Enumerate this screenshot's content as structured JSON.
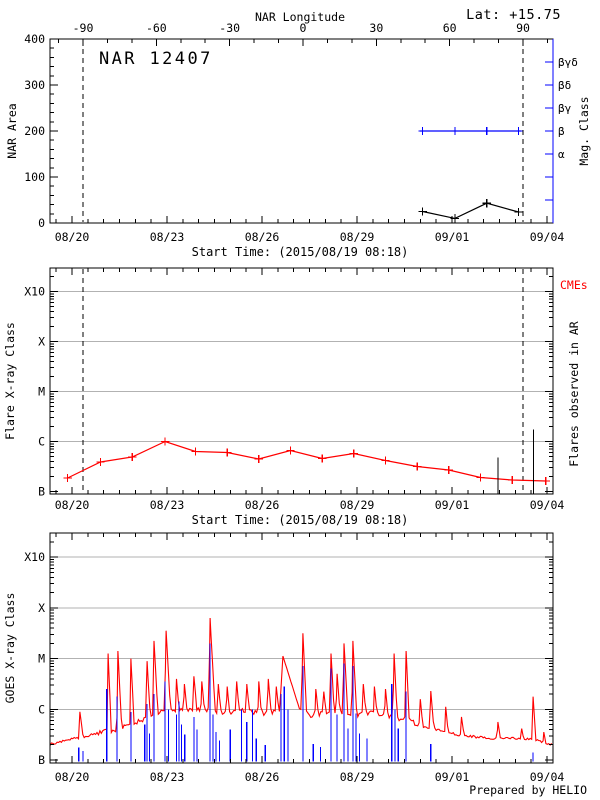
{
  "header": {
    "lat": "Lat: +15.75",
    "title": "NAR 12407",
    "prepared_by": "Prepared by HELIO"
  },
  "colors": {
    "red": "#ff0000",
    "blue": "#0000ff",
    "grid": "#b2b2b2",
    "black": "#000000"
  },
  "time_axis": {
    "tick_labels": [
      "08/20",
      "08/23",
      "08/26",
      "08/29",
      "09/01",
      "09/04"
    ],
    "tick_days": [
      0,
      3,
      6,
      9,
      12,
      15
    ],
    "minor_step_days": 0.5,
    "start_time_label": "Start Time: (2015/08/19 08:18)"
  },
  "longitude_axis": {
    "title": "NAR Longitude",
    "tick_values": [
      -90,
      -60,
      -30,
      0,
      30,
      60,
      90
    ],
    "minor_step_deg": 10,
    "limb_lines_deg": [
      -90,
      90
    ]
  },
  "level_encoding": "y levels for X-ray panels given in decades above B: 0=B, 1=C, 2=M, 3=X, 4=X10",
  "chart_data": [
    {
      "type": "line",
      "title": "NAR 12407 area and magnetic class",
      "ylabel": "NAR Area",
      "ylim": [
        0,
        400
      ],
      "yticks": [
        0,
        100,
        200,
        300,
        400
      ],
      "right_axis": {
        "label": "Mag. Class",
        "tick_labels": [
          "βγδ",
          "βδ",
          "βγ",
          "β",
          "α"
        ],
        "color": "#0000ff"
      },
      "series": [
        {
          "name": "nar-area",
          "color": "#000000",
          "marker": "plus",
          "x_days": [
            11.07,
            12.09,
            13.1,
            14.1
          ],
          "values": [
            25,
            10,
            43,
            24
          ]
        },
        {
          "name": "mag-class",
          "color": "#0000ff",
          "marker": "plus",
          "x_days": [
            11.07,
            12.09,
            13.1,
            14.1
          ],
          "class_values": [
            "β",
            "β",
            "β",
            "β"
          ]
        }
      ]
    },
    {
      "type": "line",
      "ylabel": "Flare X-ray Class",
      "yticks": [
        "B",
        "C",
        "M",
        "X",
        "X10"
      ],
      "right_label": "Flares observed in AR",
      "cmes_label": "CMEs",
      "series": [
        {
          "name": "flare-xray-class",
          "color": "#ff0000",
          "marker": "plus",
          "points": [
            [
              -0.14,
              0.27
            ],
            [
              0.9,
              0.59
            ],
            [
              1.9,
              0.69
            ],
            [
              2.94,
              1.0
            ],
            [
              3.9,
              0.8
            ],
            [
              4.9,
              0.78
            ],
            [
              5.9,
              0.65
            ],
            [
              6.9,
              0.82
            ],
            [
              7.9,
              0.66
            ],
            [
              8.9,
              0.76
            ],
            [
              9.9,
              0.62
            ],
            [
              10.9,
              0.5
            ],
            [
              11.9,
              0.43
            ],
            [
              12.9,
              0.28
            ],
            [
              13.9,
              0.23
            ],
            [
              14.96,
              0.21
            ]
          ]
        }
      ],
      "flare_event_lines": [
        [
          13.45,
          0.68
        ],
        [
          14.57,
          1.24
        ]
      ]
    },
    {
      "type": "line",
      "ylabel": "GOES X-ray Class",
      "yticks": [
        "B",
        "C",
        "M",
        "X",
        "X10"
      ],
      "goes_baseline": [
        [
          -0.7,
          0.3
        ],
        [
          -0.4,
          0.36
        ],
        [
          0,
          0.42
        ],
        [
          0.5,
          0.47
        ],
        [
          1,
          0.58
        ],
        [
          1.5,
          0.6
        ],
        [
          2,
          0.75
        ],
        [
          2.5,
          0.88
        ],
        [
          3,
          1.0
        ],
        [
          3.5,
          0.98
        ],
        [
          4,
          1.02
        ],
        [
          4.5,
          0.96
        ],
        [
          5,
          0.92
        ],
        [
          5.5,
          0.98
        ],
        [
          6,
          0.92
        ],
        [
          6.5,
          0.98
        ],
        [
          6.9,
          1.15
        ],
        [
          7.1,
          0.98
        ],
        [
          7.5,
          0.88
        ],
        [
          8,
          0.92
        ],
        [
          8.5,
          0.95
        ],
        [
          9,
          0.9
        ],
        [
          9.5,
          0.95
        ],
        [
          10,
          0.88
        ],
        [
          10.5,
          0.8
        ],
        [
          11,
          0.68
        ],
        [
          11.5,
          0.6
        ],
        [
          12,
          0.52
        ],
        [
          12.5,
          0.47
        ],
        [
          13,
          0.44
        ],
        [
          13.5,
          0.42
        ],
        [
          14,
          0.43
        ],
        [
          14.5,
          0.42
        ],
        [
          15,
          0.33
        ],
        [
          15.2,
          0.3
        ]
      ],
      "goes_spikes": [
        [
          0.25,
          0.95,
          0.03,
          0.1
        ],
        [
          1.14,
          2.1,
          0.035,
          0.1
        ],
        [
          1.45,
          2.15,
          0.035,
          0.12
        ],
        [
          1.86,
          2.0,
          0.035,
          0.1
        ],
        [
          2.37,
          1.95,
          0.035,
          0.1
        ],
        [
          2.59,
          2.35,
          0.035,
          0.12
        ],
        [
          2.97,
          2.55,
          0.04,
          0.14
        ],
        [
          3.3,
          1.6,
          0.03,
          0.08
        ],
        [
          3.55,
          1.5,
          0.03,
          0.08
        ],
        [
          3.85,
          1.65,
          0.03,
          0.09
        ],
        [
          4.1,
          1.55,
          0.03,
          0.08
        ],
        [
          4.36,
          2.8,
          0.04,
          0.16
        ],
        [
          4.62,
          1.5,
          0.03,
          0.08
        ],
        [
          4.9,
          1.45,
          0.03,
          0.08
        ],
        [
          5.2,
          1.55,
          0.03,
          0.08
        ],
        [
          5.52,
          1.5,
          0.03,
          0.08
        ],
        [
          5.9,
          1.55,
          0.03,
          0.08
        ],
        [
          6.2,
          1.6,
          0.03,
          0.08
        ],
        [
          6.45,
          1.45,
          0.03,
          0.08
        ],
        [
          6.66,
          2.05,
          0.1,
          0.55
        ],
        [
          7.29,
          2.5,
          0.04,
          0.12
        ],
        [
          7.7,
          1.4,
          0.03,
          0.08
        ],
        [
          7.95,
          1.35,
          0.03,
          0.08
        ],
        [
          8.18,
          2.1,
          0.035,
          0.1
        ],
        [
          8.37,
          1.7,
          0.03,
          0.09
        ],
        [
          8.59,
          2.3,
          0.035,
          0.12
        ],
        [
          8.87,
          2.35,
          0.035,
          0.12
        ],
        [
          9.2,
          1.5,
          0.03,
          0.08
        ],
        [
          9.55,
          1.45,
          0.03,
          0.08
        ],
        [
          9.9,
          1.4,
          0.03,
          0.08
        ],
        [
          10.17,
          2.1,
          0.035,
          0.1
        ],
        [
          10.55,
          2.15,
          0.035,
          0.1
        ],
        [
          11,
          1.2,
          0.03,
          0.08
        ],
        [
          11.33,
          1.36,
          0.035,
          0.1
        ],
        [
          11.8,
          1.05,
          0.03,
          0.08
        ],
        [
          12.3,
          0.85,
          0.03,
          0.08
        ],
        [
          13.45,
          0.75,
          0.03,
          0.08
        ],
        [
          14.2,
          0.62,
          0.025,
          0.06
        ],
        [
          14.56,
          1.25,
          0.03,
          0.09
        ],
        [
          14.9,
          0.55,
          0.025,
          0.06
        ]
      ],
      "flare_lines_blue": [
        [
          0.21,
          0.25
        ],
        [
          0.35,
          0.18
        ],
        [
          1.1,
          1.4
        ],
        [
          1.42,
          1.25
        ],
        [
          1.86,
          0.95
        ],
        [
          2.3,
          0.7
        ],
        [
          2.37,
          1.1
        ],
        [
          2.45,
          0.52
        ],
        [
          2.59,
          1.3
        ],
        [
          2.94,
          1.55
        ],
        [
          3.05,
          1.0
        ],
        [
          3.3,
          0.9
        ],
        [
          3.38,
          1.15
        ],
        [
          3.46,
          0.7
        ],
        [
          3.56,
          0.5
        ],
        [
          3.85,
          0.85
        ],
        [
          3.95,
          0.6
        ],
        [
          4.36,
          2.3
        ],
        [
          4.45,
          0.9
        ],
        [
          4.55,
          0.55
        ],
        [
          4.66,
          0.38
        ],
        [
          5.0,
          0.6
        ],
        [
          5.35,
          1.0
        ],
        [
          5.52,
          0.75
        ],
        [
          5.7,
          1.0
        ],
        [
          5.82,
          0.42
        ],
        [
          6.1,
          0.3
        ],
        [
          6.6,
          1.3
        ],
        [
          6.7,
          1.45
        ],
        [
          6.82,
          1.0
        ],
        [
          7.29,
          1.85
        ],
        [
          7.62,
          0.32
        ],
        [
          7.85,
          0.26
        ],
        [
          8.18,
          1.8
        ],
        [
          8.37,
          0.9
        ],
        [
          8.59,
          1.9
        ],
        [
          8.72,
          0.62
        ],
        [
          8.87,
          1.85
        ],
        [
          8.97,
          0.92
        ],
        [
          9.08,
          0.52
        ],
        [
          9.32,
          0.42
        ],
        [
          10.1,
          1.5
        ],
        [
          10.2,
          1.0
        ],
        [
          10.3,
          0.62
        ],
        [
          10.55,
          1.35
        ],
        [
          11.33,
          0.32
        ],
        [
          14.56,
          0.15
        ]
      ]
    }
  ]
}
